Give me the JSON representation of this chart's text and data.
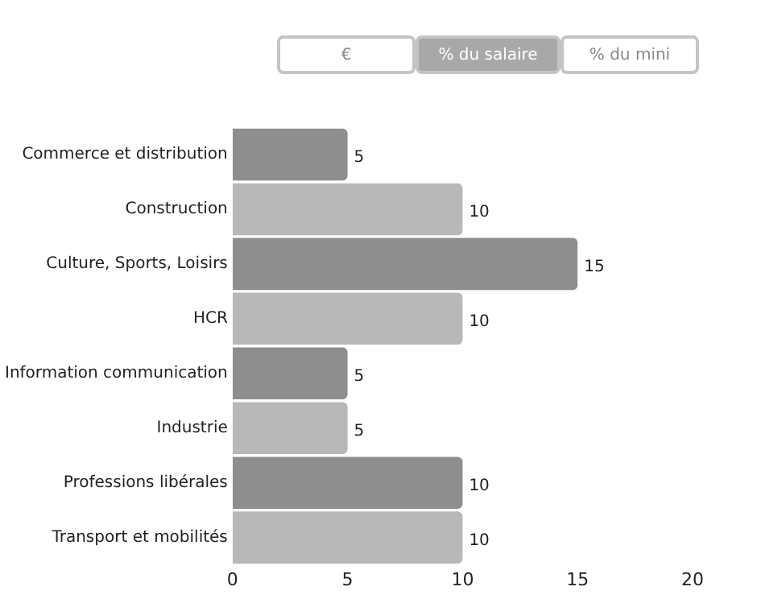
{
  "chart_data": {
    "type": "bar",
    "orientation": "horizontal",
    "categories": [
      "Commerce et distribution",
      "Construction",
      "Culture, Sports, Loisirs",
      "HCR",
      "Information communication",
      "Industrie",
      "Professions libérales",
      "Transport et mobilités"
    ],
    "values": [
      5,
      10,
      15,
      10,
      5,
      5,
      10,
      10
    ],
    "colors": [
      "#8e8e8e",
      "#b8b8b8",
      "#8e8e8e",
      "#b8b8b8",
      "#8e8e8e",
      "#b8b8b8",
      "#8e8e8e",
      "#b8b8b8"
    ],
    "xlim": [
      0,
      20
    ],
    "xticks": [
      0,
      5,
      10,
      15,
      20
    ],
    "data_labels": true,
    "grid": false,
    "legend": false,
    "annotations": [
      "€",
      "% du salaire",
      "% du mini"
    ]
  }
}
